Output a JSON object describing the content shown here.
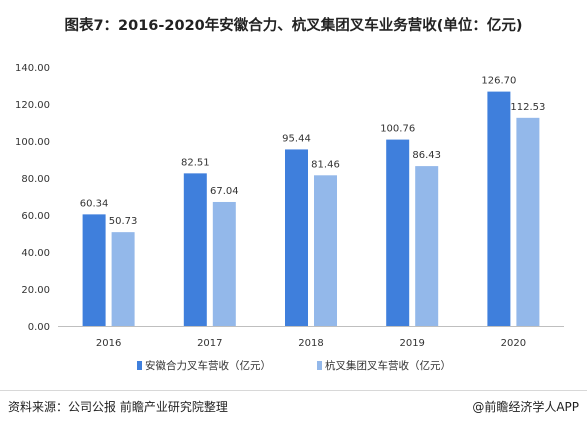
{
  "chart_data": {
    "type": "bar",
    "title": "图表7：2016-2020年安徽合力、杭叉集团叉车业务营收(单位：亿元)",
    "categories": [
      "2016",
      "2017",
      "2018",
      "2019",
      "2020"
    ],
    "series": [
      {
        "name": "安徽合力叉车营收（亿元）",
        "values": [
          60.34,
          82.51,
          95.44,
          100.76,
          126.7
        ],
        "labels": [
          "60.34",
          "82.51",
          "95.44",
          "100.76",
          "126.70"
        ],
        "color": "#3f7fdc"
      },
      {
        "name": "杭叉集团叉车营收（亿元）",
        "values": [
          50.73,
          67.04,
          81.46,
          86.43,
          112.53
        ],
        "labels": [
          "50.73",
          "67.04",
          "81.46",
          "86.43",
          "112.53"
        ],
        "color": "#93b8ea"
      }
    ],
    "yticks": [
      "0.00",
      "20.00",
      "40.00",
      "60.00",
      "80.00",
      "100.00",
      "120.00",
      "140.00"
    ],
    "ylim": [
      0,
      140
    ],
    "grid": false,
    "legend": "bottom-center"
  },
  "footer": {
    "source": "资料来源：公司公报 前瞻产业研究院整理",
    "brand": "@前瞻经济学人APP"
  }
}
